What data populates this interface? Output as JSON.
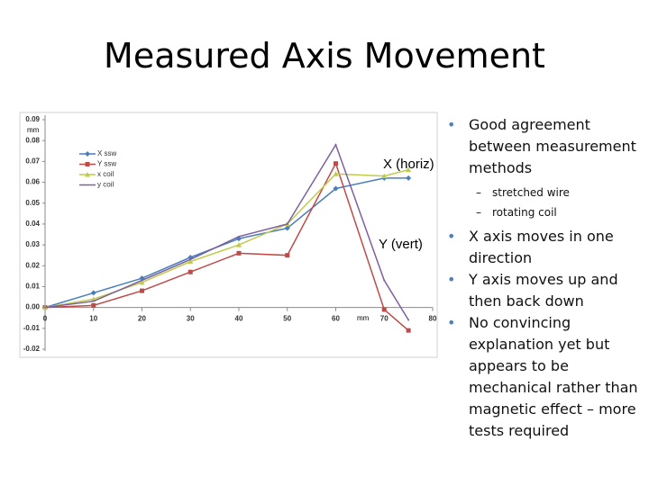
{
  "slide": {
    "title": "Measured Axis Movement",
    "bullets": [
      {
        "text": "Good agreement between measurement methods",
        "sub": [
          "stretched wire",
          "rotating coil"
        ]
      },
      {
        "text": "X axis moves in one direction",
        "sub": []
      },
      {
        "text": "Y axis moves up and then back down",
        "sub": []
      },
      {
        "text": "No convincing explanation yet but appears to be mechanical rather than magnetic effect – more tests required",
        "sub": []
      }
    ]
  },
  "chart_data": {
    "type": "line",
    "y_label": "mm",
    "x_label": "mm",
    "annotations": [
      "X (horiz)",
      "Y (vert)"
    ],
    "x": [
      0,
      10,
      20,
      30,
      40,
      50,
      60,
      70,
      75
    ],
    "xlim": [
      0,
      80
    ],
    "xticks": [
      0,
      10,
      20,
      30,
      40,
      50,
      60,
      70,
      80
    ],
    "ylim": [
      -0.02,
      0.09
    ],
    "yticks": [
      -0.02,
      -0.01,
      {
        "value": 0,
        "label": "0.00"
      },
      0.01,
      0.02,
      0.03,
      0.04,
      0.05,
      0.06,
      0.07,
      0.08,
      0.09
    ],
    "legend": "upper left",
    "series": [
      {
        "name": "X ssw",
        "color": "#4a7ebb",
        "marker": "diamond",
        "values": [
          0,
          0.007,
          0.014,
          0.024,
          0.033,
          0.038,
          0.057,
          0.062,
          0.062
        ]
      },
      {
        "name": "Y ssw",
        "color": "#be4b48",
        "marker": "square",
        "values": [
          0,
          0.001,
          0.008,
          0.017,
          0.026,
          0.025,
          0.069,
          -0.001,
          -0.011
        ]
      },
      {
        "name": "x coil",
        "color": "#bfcc4a",
        "marker": "triangle",
        "values": [
          0,
          0.004,
          0.012,
          0.022,
          0.03,
          0.04,
          0.064,
          0.063,
          0.066
        ]
      },
      {
        "name": "y coil",
        "color": "#7d60a0",
        "marker": "none",
        "values": [
          0,
          0.003,
          0.013,
          0.023,
          0.034,
          0.04,
          0.078,
          0.013,
          -0.006
        ]
      }
    ]
  }
}
